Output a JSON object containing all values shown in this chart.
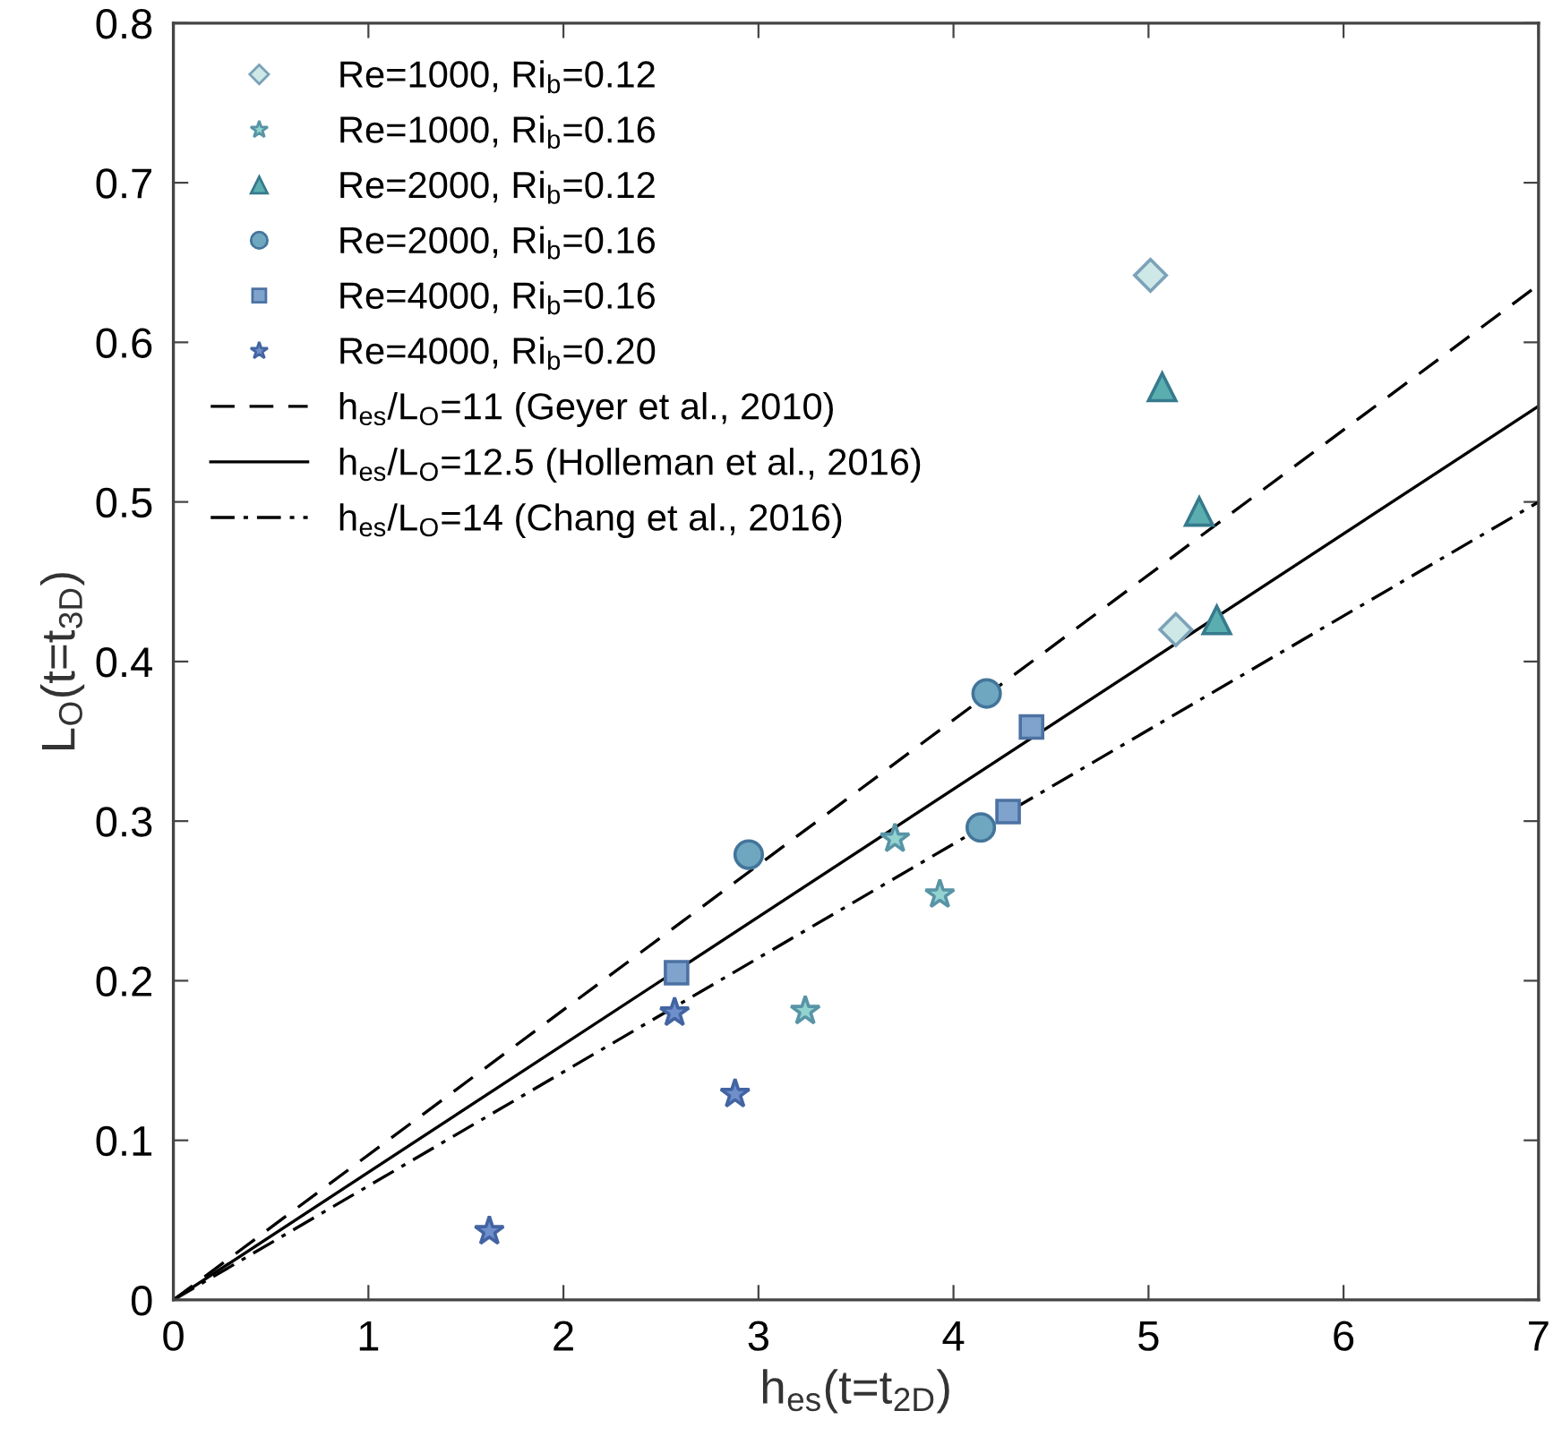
{
  "chart_data": {
    "type": "scatter",
    "xlabel": "h$_{es}$(t=t$_{2D}$)",
    "ylabel": "L$_{O}$(t=t$_{3D}$)",
    "xlim": [
      0,
      7
    ],
    "ylim": [
      0,
      0.8
    ],
    "xticks": [
      0,
      1,
      2,
      3,
      4,
      5,
      6,
      7
    ],
    "yticks": [
      0,
      0.1,
      0.2,
      0.3,
      0.4,
      0.5,
      0.6,
      0.7,
      0.8
    ],
    "grid": false,
    "legend": "top left",
    "series": [
      {
        "name": "Re=1000, Ri$_{b}$=0.12",
        "marker": "diamond",
        "color": "#cde8e6",
        "x": [
          5.01,
          5.14
        ],
        "values": [
          0.642,
          0.42
        ]
      },
      {
        "name": "Re=1000, Ri$_{b}$=0.16",
        "marker": "star",
        "color": "#92d3cf",
        "x": [
          3.7,
          3.93,
          3.24
        ],
        "values": [
          0.289,
          0.254,
          0.181
        ]
      },
      {
        "name": "Re=2000, Ri$_{b}$=0.12",
        "marker": "triangle",
        "color": "#5aaeb0",
        "x": [
          5.07,
          5.26,
          5.35
        ],
        "values": [
          0.572,
          0.494,
          0.426
        ]
      },
      {
        "name": "Re=2000, Ri$_{b}$=0.16",
        "marker": "circle",
        "color": "#6fa7c0",
        "x": [
          4.17,
          4.14,
          2.95
        ],
        "values": [
          0.38,
          0.296,
          0.279
        ]
      },
      {
        "name": "Re=4000, Ri$_{b}$=0.16",
        "marker": "square",
        "color": "#7fa3cc",
        "x": [
          4.4,
          4.28,
          2.58
        ],
        "values": [
          0.359,
          0.306,
          0.205
        ]
      },
      {
        "name": "Re=4000, Ri$_{b}$=0.20",
        "marker": "star",
        "color": "#6f8fcb",
        "x": [
          2.57,
          2.88,
          1.62
        ],
        "values": [
          0.18,
          0.129,
          0.043
        ]
      },
      {
        "name": "h$_{es}$/L$_{O}$=11 (Geyer et al., 2010)",
        "type": "line",
        "marker": "none",
        "line_style": "dashed",
        "color": "#000000",
        "x": [
          0,
          7
        ],
        "values": [
          0,
          0.636
        ]
      },
      {
        "name": "h$_{es}$/L$_{O}$=12.5 (Holleman et al., 2016)",
        "type": "line",
        "marker": "none",
        "line_style": "solid",
        "color": "#000000",
        "x": [
          0,
          7
        ],
        "values": [
          0,
          0.56
        ]
      },
      {
        "name": "h$_{es}$/L$_{O}$=14 (Chang et al., 2016)",
        "type": "line",
        "marker": "none",
        "line_style": "dashdot",
        "color": "#000000",
        "x": [
          0,
          7
        ],
        "values": [
          0,
          0.5
        ]
      }
    ]
  }
}
